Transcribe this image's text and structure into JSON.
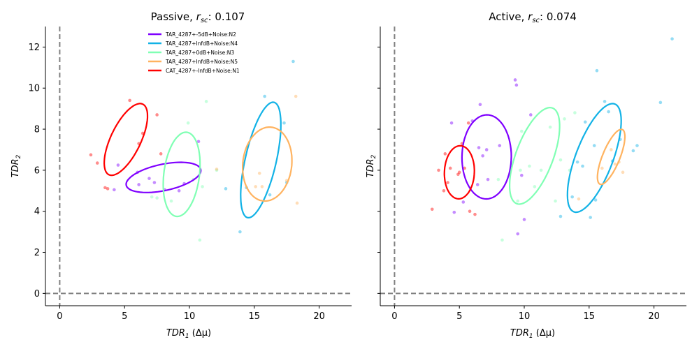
{
  "chart_data": [
    {
      "type": "scatter",
      "title": "Passive, r_sc: 0.107",
      "title_parts": {
        "prefix": "Passive, ",
        "r": "r",
        "sub": "sc",
        "suffix": ": 0.107"
      },
      "xlabel": "TDR_1 (Δμ)",
      "xlabel_parts": {
        "main": "TDR",
        "sub": "1",
        "rest": " (Δμ)"
      },
      "ylabel": "TDR_2",
      "ylabel_parts": {
        "main": "TDR",
        "sub": "2"
      },
      "xlim": [
        -1.1,
        22.5
      ],
      "ylim": [
        -0.6,
        13.0
      ],
      "xticks": [
        "0",
        "5",
        "10",
        "15",
        "20"
      ],
      "yticks": [
        "0",
        "2",
        "4",
        "6",
        "8",
        "10",
        "12"
      ],
      "reference_lines": {
        "x": 0,
        "y": 0,
        "style": "dashed",
        "color": "#808080"
      },
      "show_y_tick_labels": true,
      "legend": {
        "placement": "top-center",
        "entries": [
          {
            "label": "TAR_4287+-5dB+Noise:N2",
            "color": "#7f00ff"
          },
          {
            "label": "TAR_4287+InfdB+Noise:N4",
            "color": "#12b2e6"
          },
          {
            "label": "TAR_4287+0dB+Noise:N3",
            "color": "#80ffb4"
          },
          {
            "label": "TAR_4287+InfdB+Noise:N5",
            "color": "#ffb360"
          },
          {
            "label": "CAT_4287+-InfdB+Noise:N1",
            "color": "#ff0000"
          }
        ]
      },
      "series": [
        {
          "color": "#7f00ff",
          "points": [
            [
              4.2,
              5.05
            ],
            [
              4.5,
              6.25
            ],
            [
              6.0,
              5.9
            ],
            [
              6.1,
              5.3
            ],
            [
              6.9,
              5.6
            ],
            [
              7.3,
              5.4
            ],
            [
              8.1,
              5.05
            ],
            [
              9.2,
              5.0
            ],
            [
              9.6,
              5.35
            ],
            [
              10.7,
              7.4
            ]
          ],
          "ellipse": {
            "cx": 8.0,
            "cy": 5.65,
            "rx": 2.9,
            "ry": 0.65,
            "angle": 7
          }
        },
        {
          "color": "#12b2e6",
          "points": [
            [
              12.8,
              5.1
            ],
            [
              13.9,
              3.0
            ],
            [
              14.4,
              5.15
            ],
            [
              15.8,
              9.6
            ],
            [
              16.2,
              4.8
            ],
            [
              17.3,
              8.3
            ],
            [
              17.5,
              5.4
            ],
            [
              18.0,
              11.3
            ]
          ],
          "ellipse": {
            "cx": 15.5,
            "cy": 6.5,
            "rx": 3.0,
            "ry": 1.15,
            "angle": 68
          }
        },
        {
          "color": "#80ffb4",
          "points": [
            [
              7.1,
              4.7
            ],
            [
              7.5,
              4.65
            ],
            [
              8.6,
              4.5
            ],
            [
              9.9,
              8.3
            ],
            [
              10.3,
              5.55
            ],
            [
              10.8,
              2.6
            ],
            [
              11.0,
              5.2
            ],
            [
              11.3,
              9.35
            ],
            [
              12.1,
              6.0
            ]
          ],
          "ellipse": {
            "cx": 9.4,
            "cy": 5.8,
            "rx": 2.1,
            "ry": 1.35,
            "angle": 74
          }
        },
        {
          "color": "#ffb360",
          "points": [
            [
              12.1,
              6.05
            ],
            [
              15.1,
              5.2
            ],
            [
              15.4,
              5.85
            ],
            [
              15.6,
              5.2
            ],
            [
              17.5,
              5.5
            ],
            [
              18.2,
              9.6
            ],
            [
              18.3,
              4.4
            ]
          ],
          "ellipse": {
            "cx": 16.0,
            "cy": 6.3,
            "rx": 1.95,
            "ry": 1.75,
            "angle": 30
          }
        },
        {
          "color": "#ff0000",
          "points": [
            [
              2.4,
              6.75
            ],
            [
              2.9,
              6.35
            ],
            [
              3.5,
              5.15
            ],
            [
              3.7,
              5.1
            ],
            [
              5.4,
              9.4
            ],
            [
              6.1,
              7.3
            ],
            [
              6.4,
              7.8
            ],
            [
              7.5,
              8.7
            ],
            [
              7.8,
              6.8
            ]
          ],
          "ellipse": {
            "cx": 5.1,
            "cy": 7.5,
            "rx": 2.2,
            "ry": 1.0,
            "angle": 47
          }
        }
      ]
    },
    {
      "type": "scatter",
      "title": "Active, r_sc: 0.074",
      "title_parts": {
        "prefix": "Active, ",
        "r": "r",
        "sub": "sc",
        "suffix": ": 0.074"
      },
      "xlabel": "TDR_1 (Δμ)",
      "xlabel_parts": {
        "main": "TDR",
        "sub": "1",
        "rest": " (Δμ)"
      },
      "ylabel": "TDR_2",
      "ylabel_parts": {
        "main": "TDR",
        "sub": "2"
      },
      "xlim": [
        -1.1,
        22.5
      ],
      "ylim": [
        -0.6,
        13.0
      ],
      "xticks": [
        "0",
        "5",
        "10",
        "15",
        "20"
      ],
      "yticks": [
        "0",
        "2",
        "4",
        "6",
        "8",
        "10",
        "12"
      ],
      "reference_lines": {
        "x": 0,
        "y": 0,
        "style": "dashed",
        "color": "#808080"
      },
      "show_y_tick_labels": false,
      "series": [
        {
          "color": "#7f00ff",
          "points": [
            [
              4.4,
              8.3
            ],
            [
              4.6,
              3.95
            ],
            [
              5.3,
              4.45
            ],
            [
              6.0,
              8.4
            ],
            [
              6.4,
              5.3
            ],
            [
              6.5,
              7.1
            ],
            [
              6.6,
              9.2
            ],
            [
              6.8,
              6.7
            ],
            [
              7.1,
              7.0
            ],
            [
              7.2,
              5.55
            ],
            [
              8.1,
              7.2
            ],
            [
              9.3,
              10.4
            ],
            [
              9.4,
              10.15
            ],
            [
              9.5,
              2.9
            ],
            [
              9.8,
              5.75
            ],
            [
              10.0,
              3.6
            ],
            [
              10.5,
              8.7
            ]
          ],
          "ellipse": {
            "cx": 7.1,
            "cy": 6.65,
            "rx": 2.05,
            "ry": 1.9,
            "angle": 85
          }
        },
        {
          "color": "#12b2e6",
          "points": [
            [
              12.8,
              3.75
            ],
            [
              13.7,
              4.7
            ],
            [
              14.1,
              6.4
            ],
            [
              14.5,
              6.2
            ],
            [
              14.7,
              8.35
            ],
            [
              15.1,
              3.7
            ],
            [
              15.4,
              7.2
            ],
            [
              15.5,
              4.55
            ],
            [
              15.6,
              10.85
            ],
            [
              16.2,
              9.35
            ],
            [
              16.5,
              8.85
            ],
            [
              16.8,
              6.45
            ],
            [
              17.4,
              7.5
            ],
            [
              18.4,
              6.95
            ],
            [
              18.7,
              7.2
            ],
            [
              20.5,
              9.3
            ],
            [
              21.4,
              12.4
            ]
          ],
          "ellipse": {
            "cx": 15.4,
            "cy": 6.6,
            "rx": 3.1,
            "ry": 1.3,
            "angle": 55
          }
        },
        {
          "color": "#80ffb4",
          "points": [
            [
              8.0,
              5.55
            ],
            [
              8.3,
              2.6
            ],
            [
              9.5,
              4.5
            ],
            [
              9.7,
              6.0
            ],
            [
              9.8,
              7.9
            ],
            [
              10.4,
              6.2
            ],
            [
              10.8,
              5.2
            ],
            [
              11.3,
              6.0
            ],
            [
              12.0,
              8.1
            ],
            [
              12.4,
              4.5
            ],
            [
              12.8,
              6.5
            ],
            [
              13.1,
              8.5
            ],
            [
              13.5,
              6.0
            ],
            [
              13.9,
              8.8
            ]
          ],
          "ellipse": {
            "cx": 10.8,
            "cy": 6.7,
            "rx": 2.75,
            "ry": 1.3,
            "angle": 54
          }
        },
        {
          "color": "#ffb360",
          "points": [
            [
              14.2,
              4.6
            ],
            [
              16.0,
              6.1
            ],
            [
              16.7,
              7.0
            ],
            [
              17.0,
              6.3
            ],
            [
              17.3,
              6.4
            ],
            [
              17.6,
              5.9
            ]
          ],
          "ellipse": {
            "cx": 16.7,
            "cy": 6.65,
            "rx": 1.6,
            "ry": 0.6,
            "angle": 54
          }
        },
        {
          "color": "#ff0000",
          "points": [
            [
              2.9,
              4.1
            ],
            [
              3.4,
              6.0
            ],
            [
              3.8,
              5.0
            ],
            [
              3.9,
              6.8
            ],
            [
              4.1,
              5.4
            ],
            [
              4.3,
              6.1
            ],
            [
              4.9,
              5.8
            ],
            [
              5.0,
              5.9
            ],
            [
              5.2,
              7.3
            ],
            [
              5.4,
              6.1
            ],
            [
              5.7,
              8.3
            ],
            [
              5.8,
              4.0
            ],
            [
              6.2,
              3.85
            ]
          ],
          "ellipse": {
            "cx": 5.0,
            "cy": 5.9,
            "rx": 1.3,
            "ry": 1.15,
            "angle": 78
          }
        }
      ]
    }
  ]
}
